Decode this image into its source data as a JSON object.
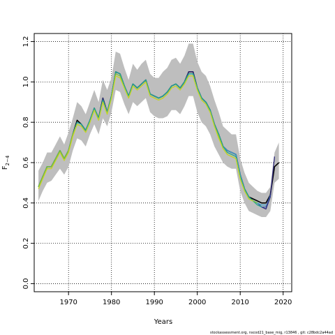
{
  "chart_data": {
    "type": "line",
    "xlabel": "Years",
    "ylabel": "F",
    "ylabel_sub": "2−4",
    "xlim": [
      1962,
      2022
    ],
    "ylim": [
      -0.04,
      1.24
    ],
    "xticks": [
      1970,
      1980,
      1990,
      2000,
      2010,
      2020
    ],
    "yticks": [
      0.0,
      0.2,
      0.4,
      0.6,
      0.8,
      1.0,
      1.2
    ],
    "xtick_labels": [
      "1970",
      "1980",
      "1990",
      "2000",
      "2010",
      "2020"
    ],
    "ytick_labels": [
      "0.0",
      "0.2",
      "0.4",
      "0.6",
      "0.8",
      "1.0",
      "1.2"
    ],
    "grid": true,
    "footnote": "stockassessment.org, nscod21_base_mig, r13846 , git: c28bdc2a44ad",
    "band_color": "#bebebe",
    "years": [
      1963,
      1964,
      1965,
      1966,
      1967,
      1968,
      1969,
      1970,
      1971,
      1972,
      1973,
      1974,
      1975,
      1976,
      1977,
      1978,
      1979,
      1980,
      1981,
      1982,
      1983,
      1984,
      1985,
      1986,
      1987,
      1988,
      1989,
      1990,
      1991,
      1992,
      1993,
      1994,
      1995,
      1996,
      1997,
      1998,
      1999,
      2000,
      2001,
      2002,
      2003,
      2004,
      2005,
      2006,
      2007,
      2008,
      2009,
      2010,
      2011,
      2012,
      2013,
      2014,
      2015,
      2016,
      2017,
      2018,
      2019
    ],
    "upper": [
      0.56,
      0.6,
      0.65,
      0.65,
      0.69,
      0.73,
      0.69,
      0.75,
      0.82,
      0.9,
      0.88,
      0.84,
      0.9,
      0.96,
      0.9,
      1.01,
      0.96,
      1.02,
      1.15,
      1.14,
      1.07,
      1.01,
      1.09,
      1.06,
      1.09,
      1.11,
      1.04,
      1.02,
      1.02,
      1.05,
      1.07,
      1.11,
      1.12,
      1.09,
      1.13,
      1.19,
      1.19,
      1.1,
      1.05,
      1.03,
      0.98,
      0.91,
      0.85,
      0.78,
      0.76,
      0.74,
      0.74,
      0.62,
      0.55,
      0.5,
      0.48,
      0.46,
      0.45,
      0.45,
      0.48,
      0.65,
      0.7
    ],
    "lower": [
      0.41,
      0.46,
      0.5,
      0.51,
      0.54,
      0.57,
      0.54,
      0.58,
      0.66,
      0.72,
      0.71,
      0.68,
      0.74,
      0.79,
      0.74,
      0.82,
      0.78,
      0.85,
      0.96,
      0.95,
      0.89,
      0.84,
      0.9,
      0.88,
      0.9,
      0.92,
      0.85,
      0.83,
      0.82,
      0.82,
      0.83,
      0.86,
      0.86,
      0.84,
      0.88,
      0.93,
      0.93,
      0.85,
      0.8,
      0.78,
      0.74,
      0.68,
      0.64,
      0.6,
      0.58,
      0.57,
      0.57,
      0.46,
      0.4,
      0.36,
      0.35,
      0.34,
      0.33,
      0.33,
      0.36,
      0.5,
      0.52
    ],
    "series": [
      {
        "color": "#000000",
        "years": [
          1963,
          1964,
          1965,
          1966,
          1967,
          1968,
          1969,
          1970,
          1971,
          1972,
          1973,
          1974,
          1975,
          1976,
          1977,
          1978,
          1979,
          1980,
          1981,
          1982,
          1983,
          1984,
          1985,
          1986,
          1987,
          1988,
          1989,
          1990,
          1991,
          1992,
          1993,
          1994,
          1995,
          1996,
          1997,
          1998,
          1999,
          2000,
          2001,
          2002,
          2003,
          2004,
          2005,
          2006,
          2007,
          2008,
          2009,
          2010,
          2011,
          2012,
          2013,
          2014,
          2015,
          2016,
          2017,
          2018,
          2019
        ],
        "values": [
          0.48,
          0.53,
          0.58,
          0.58,
          0.62,
          0.66,
          0.62,
          0.66,
          0.74,
          0.81,
          0.79,
          0.76,
          0.81,
          0.87,
          0.82,
          0.92,
          0.85,
          0.93,
          1.05,
          1.04,
          0.98,
          0.93,
          0.99,
          0.97,
          0.99,
          1.01,
          0.94,
          0.93,
          0.92,
          0.93,
          0.95,
          0.98,
          0.99,
          0.97,
          1.0,
          1.05,
          1.05,
          0.97,
          0.92,
          0.9,
          0.86,
          0.79,
          0.74,
          0.68,
          0.66,
          0.65,
          0.64,
          0.54,
          0.47,
          0.43,
          0.42,
          0.41,
          0.4,
          0.4,
          0.44,
          0.58,
          0.6
        ]
      },
      {
        "color": "#2e2a7a",
        "years": [
          1963,
          1964,
          1965,
          1966,
          1967,
          1968,
          1969,
          1970,
          1971,
          1972,
          1973,
          1974,
          1975,
          1976,
          1977,
          1978,
          1979,
          1980,
          1981,
          1982,
          1983,
          1984,
          1985,
          1986,
          1987,
          1988,
          1989,
          1990,
          1991,
          1992,
          1993,
          1994,
          1995,
          1996,
          1997,
          1998,
          1999,
          2000,
          2001,
          2002,
          2003,
          2004,
          2005,
          2006,
          2007,
          2008,
          2009,
          2010,
          2011,
          2012,
          2013,
          2014,
          2015,
          2016,
          2017,
          2018
        ],
        "values": [
          0.48,
          0.53,
          0.58,
          0.58,
          0.62,
          0.66,
          0.62,
          0.66,
          0.74,
          0.8,
          0.79,
          0.76,
          0.81,
          0.87,
          0.82,
          0.92,
          0.85,
          0.93,
          1.05,
          1.04,
          0.98,
          0.93,
          0.99,
          0.97,
          0.99,
          1.01,
          0.94,
          0.93,
          0.92,
          0.93,
          0.95,
          0.98,
          0.99,
          0.97,
          1.0,
          1.05,
          1.05,
          0.97,
          0.92,
          0.9,
          0.86,
          0.79,
          0.74,
          0.68,
          0.66,
          0.65,
          0.64,
          0.54,
          0.47,
          0.43,
          0.41,
          0.4,
          0.38,
          0.37,
          0.43,
          0.63
        ]
      },
      {
        "color": "#3a5ca8",
        "years": [
          1963,
          1964,
          1965,
          1966,
          1967,
          1968,
          1969,
          1970,
          1971,
          1972,
          1973,
          1974,
          1975,
          1976,
          1977,
          1978,
          1979,
          1980,
          1981,
          1982,
          1983,
          1984,
          1985,
          1986,
          1987,
          1988,
          1989,
          1990,
          1991,
          1992,
          1993,
          1994,
          1995,
          1996,
          1997,
          1998,
          1999,
          2000,
          2001,
          2002,
          2003,
          2004,
          2005,
          2006,
          2007,
          2008,
          2009,
          2010,
          2011,
          2012,
          2013,
          2014,
          2015,
          2016,
          2017
        ],
        "values": [
          0.48,
          0.53,
          0.58,
          0.58,
          0.62,
          0.66,
          0.62,
          0.66,
          0.74,
          0.8,
          0.79,
          0.76,
          0.81,
          0.87,
          0.82,
          0.91,
          0.85,
          0.93,
          1.05,
          1.04,
          0.98,
          0.93,
          0.99,
          0.97,
          0.99,
          1.01,
          0.94,
          0.93,
          0.92,
          0.93,
          0.95,
          0.98,
          0.99,
          0.97,
          1.0,
          1.04,
          1.04,
          0.97,
          0.92,
          0.9,
          0.86,
          0.79,
          0.74,
          0.68,
          0.66,
          0.65,
          0.64,
          0.54,
          0.47,
          0.43,
          0.41,
          0.4,
          0.38,
          0.38,
          0.44
        ]
      },
      {
        "color": "#3fa0c8",
        "years": [
          1963,
          1964,
          1965,
          1966,
          1967,
          1968,
          1969,
          1970,
          1971,
          1972,
          1973,
          1974,
          1975,
          1976,
          1977,
          1978,
          1979,
          1980,
          1981,
          1982,
          1983,
          1984,
          1985,
          1986,
          1987,
          1988,
          1989,
          1990,
          1991,
          1992,
          1993,
          1994,
          1995,
          1996,
          1997,
          1998,
          1999,
          2000,
          2001,
          2002,
          2003,
          2004,
          2005,
          2006,
          2007,
          2008,
          2009,
          2010,
          2011,
          2012,
          2013,
          2014,
          2015,
          2016
        ],
        "values": [
          0.48,
          0.53,
          0.58,
          0.58,
          0.62,
          0.66,
          0.62,
          0.66,
          0.74,
          0.8,
          0.79,
          0.76,
          0.81,
          0.87,
          0.82,
          0.91,
          0.85,
          0.93,
          1.05,
          1.04,
          0.98,
          0.93,
          0.99,
          0.97,
          0.99,
          1.01,
          0.94,
          0.93,
          0.92,
          0.93,
          0.95,
          0.98,
          0.99,
          0.97,
          1.0,
          1.04,
          1.04,
          0.97,
          0.92,
          0.9,
          0.86,
          0.79,
          0.74,
          0.68,
          0.66,
          0.65,
          0.64,
          0.54,
          0.47,
          0.43,
          0.41,
          0.4,
          0.39,
          0.39
        ]
      },
      {
        "color": "#22a58a",
        "years": [
          1963,
          1964,
          1965,
          1966,
          1967,
          1968,
          1969,
          1970,
          1971,
          1972,
          1973,
          1974,
          1975,
          1976,
          1977,
          1978,
          1979,
          1980,
          1981,
          1982,
          1983,
          1984,
          1985,
          1986,
          1987,
          1988,
          1989,
          1990,
          1991,
          1992,
          1993,
          1994,
          1995,
          1996,
          1997,
          1998,
          1999,
          2000,
          2001,
          2002,
          2003,
          2004,
          2005,
          2006,
          2007,
          2008,
          2009,
          2010,
          2011,
          2012,
          2013,
          2014,
          2015
        ],
        "values": [
          0.48,
          0.53,
          0.58,
          0.58,
          0.62,
          0.66,
          0.62,
          0.66,
          0.74,
          0.8,
          0.79,
          0.76,
          0.81,
          0.87,
          0.82,
          0.91,
          0.85,
          0.93,
          1.05,
          1.04,
          0.98,
          0.93,
          0.99,
          0.97,
          0.99,
          1.01,
          0.94,
          0.93,
          0.92,
          0.93,
          0.95,
          0.98,
          0.99,
          0.97,
          1.0,
          1.04,
          1.04,
          0.97,
          0.92,
          0.9,
          0.86,
          0.79,
          0.74,
          0.68,
          0.65,
          0.64,
          0.63,
          0.53,
          0.47,
          0.43,
          0.41,
          0.39,
          0.38
        ]
      },
      {
        "color": "#7cc23a",
        "years": [
          1963,
          1964,
          1965,
          1966,
          1967,
          1968,
          1969,
          1970,
          1971,
          1972,
          1973,
          1974,
          1975,
          1976,
          1977,
          1978,
          1979,
          1980,
          1981,
          1982,
          1983,
          1984,
          1985,
          1986,
          1987,
          1988,
          1989,
          1990,
          1991,
          1992,
          1993,
          1994,
          1995,
          1996,
          1997,
          1998,
          1999,
          2000,
          2001,
          2002,
          2003,
          2004,
          2005,
          2006,
          2007,
          2008,
          2009,
          2010,
          2011,
          2012,
          2013,
          2014
        ],
        "values": [
          0.48,
          0.53,
          0.58,
          0.58,
          0.62,
          0.66,
          0.62,
          0.66,
          0.74,
          0.79,
          0.78,
          0.75,
          0.8,
          0.86,
          0.81,
          0.9,
          0.84,
          0.92,
          1.04,
          1.03,
          0.97,
          0.92,
          0.98,
          0.96,
          0.98,
          1.0,
          0.93,
          0.92,
          0.91,
          0.92,
          0.94,
          0.97,
          0.98,
          0.96,
          0.99,
          1.03,
          1.03,
          0.96,
          0.91,
          0.89,
          0.85,
          0.78,
          0.73,
          0.67,
          0.64,
          0.63,
          0.62,
          0.52,
          0.46,
          0.42,
          0.41,
          0.4
        ]
      },
      {
        "color": "#c8d428",
        "years": [
          1963,
          1964,
          1965,
          1966,
          1967,
          1968,
          1969,
          1970,
          1971,
          1972,
          1973,
          1974,
          1975,
          1976,
          1977,
          1978,
          1979,
          1980,
          1981,
          1982,
          1983,
          1984,
          1985,
          1986,
          1987,
          1988,
          1989,
          1990,
          1991,
          1992,
          1993,
          1994,
          1995,
          1996,
          1997,
          1998,
          1999,
          2000,
          2001,
          2002,
          2003,
          2004,
          2005,
          2006,
          2007,
          2008,
          2009,
          2010,
          2011,
          2012,
          2013
        ],
        "values": [
          0.47,
          0.52,
          0.57,
          0.57,
          0.61,
          0.65,
          0.61,
          0.65,
          0.73,
          0.79,
          0.78,
          0.75,
          0.8,
          0.86,
          0.81,
          0.9,
          0.84,
          0.92,
          1.03,
          1.02,
          0.97,
          0.92,
          0.98,
          0.96,
          0.98,
          1.0,
          0.93,
          0.92,
          0.91,
          0.92,
          0.94,
          0.97,
          0.98,
          0.96,
          0.99,
          1.03,
          1.03,
          0.96,
          0.91,
          0.89,
          0.85,
          0.78,
          0.72,
          0.67,
          0.64,
          0.63,
          0.62,
          0.52,
          0.46,
          0.42,
          0.41
        ]
      }
    ]
  }
}
